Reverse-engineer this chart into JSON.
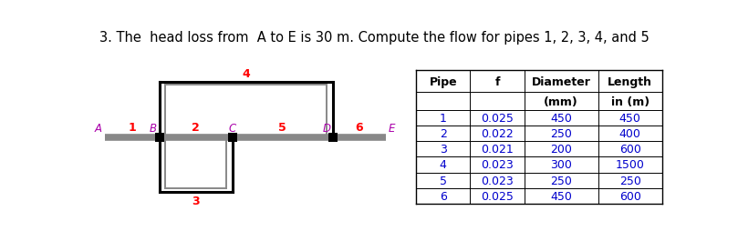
{
  "title": "3. The  head loss from  A to E is 30 m. Compute the flow for pipes 1, 2, 3, 4, and 5",
  "title_color": "#000000",
  "title_fontsize": 10.5,
  "node_label_color": "#aa00aa",
  "pipe_label_color": "#ff0000",
  "table_pipes": [
    1,
    2,
    3,
    4,
    5,
    6
  ],
  "table_f": [
    0.025,
    0.022,
    0.021,
    0.023,
    0.023,
    0.025
  ],
  "table_diameter": [
    450,
    250,
    200,
    300,
    250,
    450
  ],
  "table_length": [
    450,
    400,
    600,
    1500,
    250,
    600
  ],
  "table_data_color": "#0000cc",
  "table_header_color": "#000000",
  "line_color_gray": "#888888",
  "outer_rect_color": "#000000",
  "inner_rect_color": "#888888",
  "node_square_color": "#000000",
  "bg_color": "#ffffff"
}
